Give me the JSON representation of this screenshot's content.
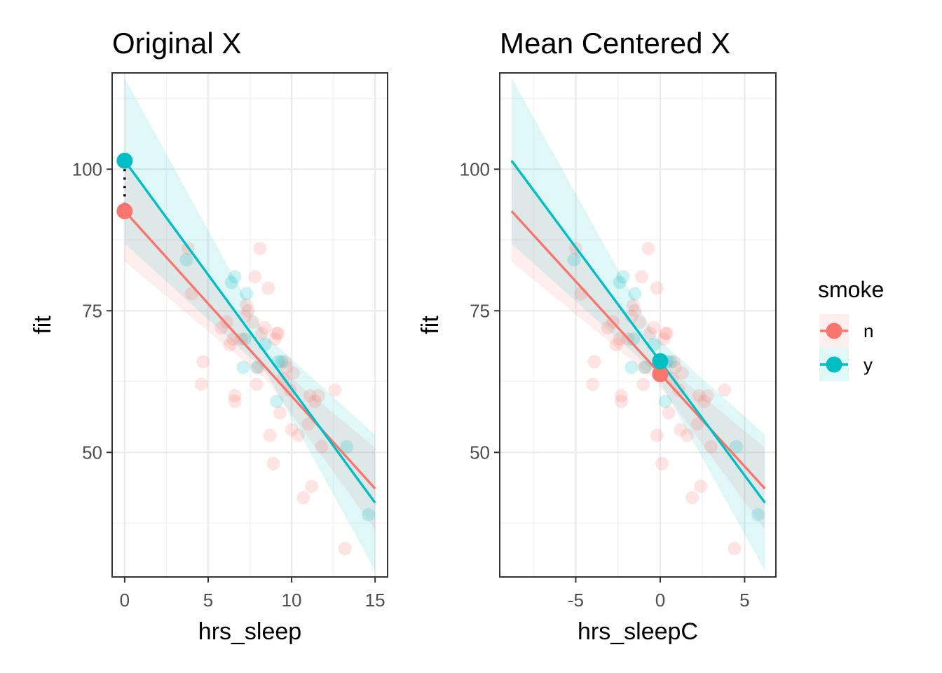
{
  "chart_data": [
    {
      "type": "scatter",
      "title": "Original X",
      "xlabel": "hrs_sleep",
      "ylabel": "fit",
      "xlim": [
        -0.75,
        15.75
      ],
      "ylim": [
        28,
        117
      ],
      "x_ticks": [
        0,
        5,
        10,
        15
      ],
      "y_ticks": [
        50,
        75,
        100
      ],
      "grid": true,
      "series": [
        {
          "name": "n",
          "points": [
            [
              3.8,
              86
            ],
            [
              4.0,
              78
            ],
            [
              4.6,
              62
            ],
            [
              4.7,
              66
            ],
            [
              5.8,
              72
            ],
            [
              6.1,
              73
            ],
            [
              6.3,
              69
            ],
            [
              6.5,
              70
            ],
            [
              6.6,
              60
            ],
            [
              6.6,
              59
            ],
            [
              7.0,
              70
            ],
            [
              7.2,
              74
            ],
            [
              7.3,
              76
            ],
            [
              7.4,
              75
            ],
            [
              7.7,
              73
            ],
            [
              7.8,
              81
            ],
            [
              7.9,
              62
            ],
            [
              8.0,
              65
            ],
            [
              8.1,
              86
            ],
            [
              8.2,
              71
            ],
            [
              8.4,
              72
            ],
            [
              8.6,
              79
            ],
            [
              8.7,
              53
            ],
            [
              8.9,
              48
            ],
            [
              9.0,
              70
            ],
            [
              9.1,
              71
            ],
            [
              9.2,
              71
            ],
            [
              9.3,
              57
            ],
            [
              9.5,
              63
            ],
            [
              9.6,
              66
            ],
            [
              9.7,
              65
            ],
            [
              9.9,
              61
            ],
            [
              10.0,
              54
            ],
            [
              10.1,
              64
            ],
            [
              10.4,
              53
            ],
            [
              10.7,
              42
            ],
            [
              11.0,
              55
            ],
            [
              11.1,
              60
            ],
            [
              11.2,
              44
            ],
            [
              11.4,
              59
            ],
            [
              11.6,
              60
            ],
            [
              11.8,
              51
            ],
            [
              12.6,
              61
            ],
            [
              13.2,
              33
            ]
          ],
          "fit_line": [
            [
              0,
              92.6
            ],
            [
              15,
              43.6
            ]
          ],
          "highlight_point": [
            0,
            92.6
          ]
        },
        {
          "name": "y",
          "points": [
            [
              3.7,
              84
            ],
            [
              6.4,
              80
            ],
            [
              6.6,
              81
            ],
            [
              7.1,
              65
            ],
            [
              7.2,
              70
            ],
            [
              7.3,
              78
            ],
            [
              7.9,
              65
            ],
            [
              8.4,
              69
            ],
            [
              9.1,
              59
            ],
            [
              9.2,
              66
            ],
            [
              9.4,
              66
            ],
            [
              13.3,
              51
            ],
            [
              14.6,
              39
            ]
          ],
          "fit_line": [
            [
              0,
              101.5
            ],
            [
              15,
              41.1
            ]
          ],
          "highlight_point": [
            0,
            101.5
          ]
        }
      ]
    },
    {
      "type": "scatter",
      "title": "Mean Centered X",
      "xlabel": "hrs_sleepC",
      "ylabel": "fit",
      "xlim": [
        -9.5,
        6.85
      ],
      "ylim": [
        28,
        117
      ],
      "x_ticks": [
        -5,
        0,
        5
      ],
      "y_ticks": [
        50,
        75,
        100
      ],
      "grid": true,
      "series": [
        {
          "name": "n",
          "points": [
            [
              -5.0,
              86
            ],
            [
              -4.7,
              78
            ],
            [
              -4.0,
              62
            ],
            [
              -3.9,
              66
            ],
            [
              -3.1,
              72
            ],
            [
              -2.8,
              73
            ],
            [
              -2.6,
              69
            ],
            [
              -2.4,
              70
            ],
            [
              -2.3,
              60
            ],
            [
              -2.3,
              59
            ],
            [
              -1.9,
              70
            ],
            [
              -1.7,
              74
            ],
            [
              -1.6,
              76
            ],
            [
              -1.5,
              75
            ],
            [
              -1.2,
              73
            ],
            [
              -1.1,
              81
            ],
            [
              -1.0,
              62
            ],
            [
              -0.9,
              65
            ],
            [
              -0.7,
              86
            ],
            [
              -0.6,
              71
            ],
            [
              -0.4,
              72
            ],
            [
              -0.2,
              79
            ],
            [
              -0.2,
              53
            ],
            [
              0.1,
              48
            ],
            [
              0.2,
              70
            ],
            [
              0.3,
              71
            ],
            [
              0.4,
              71
            ],
            [
              0.5,
              57
            ],
            [
              0.7,
              63
            ],
            [
              0.8,
              66
            ],
            [
              0.9,
              65
            ],
            [
              1.1,
              61
            ],
            [
              1.2,
              54
            ],
            [
              1.3,
              64
            ],
            [
              1.6,
              53
            ],
            [
              1.9,
              42
            ],
            [
              2.2,
              55
            ],
            [
              2.3,
              60
            ],
            [
              2.4,
              44
            ],
            [
              2.6,
              59
            ],
            [
              2.8,
              60
            ],
            [
              3.0,
              51
            ],
            [
              3.8,
              61
            ],
            [
              4.4,
              33
            ]
          ],
          "fit_line": [
            [
              -8.8,
              92.6
            ],
            [
              6.2,
              43.6
            ]
          ],
          "highlight_point": [
            0,
            63.8
          ]
        },
        {
          "name": "y",
          "points": [
            [
              -5.1,
              84
            ],
            [
              -2.4,
              80
            ],
            [
              -2.2,
              81
            ],
            [
              -1.7,
              65
            ],
            [
              -1.6,
              70
            ],
            [
              -1.5,
              78
            ],
            [
              -0.9,
              65
            ],
            [
              -0.4,
              69
            ],
            [
              0.3,
              59
            ],
            [
              0.4,
              66
            ],
            [
              0.6,
              66
            ],
            [
              4.5,
              51
            ],
            [
              5.8,
              39
            ]
          ],
          "fit_line": [
            [
              -8.8,
              101.5
            ],
            [
              6.2,
              41.1
            ]
          ],
          "highlight_point": [
            0,
            66.1
          ]
        }
      ]
    }
  ],
  "legend": {
    "title": "smoke",
    "placement": "right",
    "items": [
      {
        "label": "n",
        "color": "#F8766D"
      },
      {
        "label": "y",
        "color": "#00BFC4"
      }
    ]
  },
  "colors": {
    "n": "#F8766D",
    "y": "#00BFC4"
  }
}
